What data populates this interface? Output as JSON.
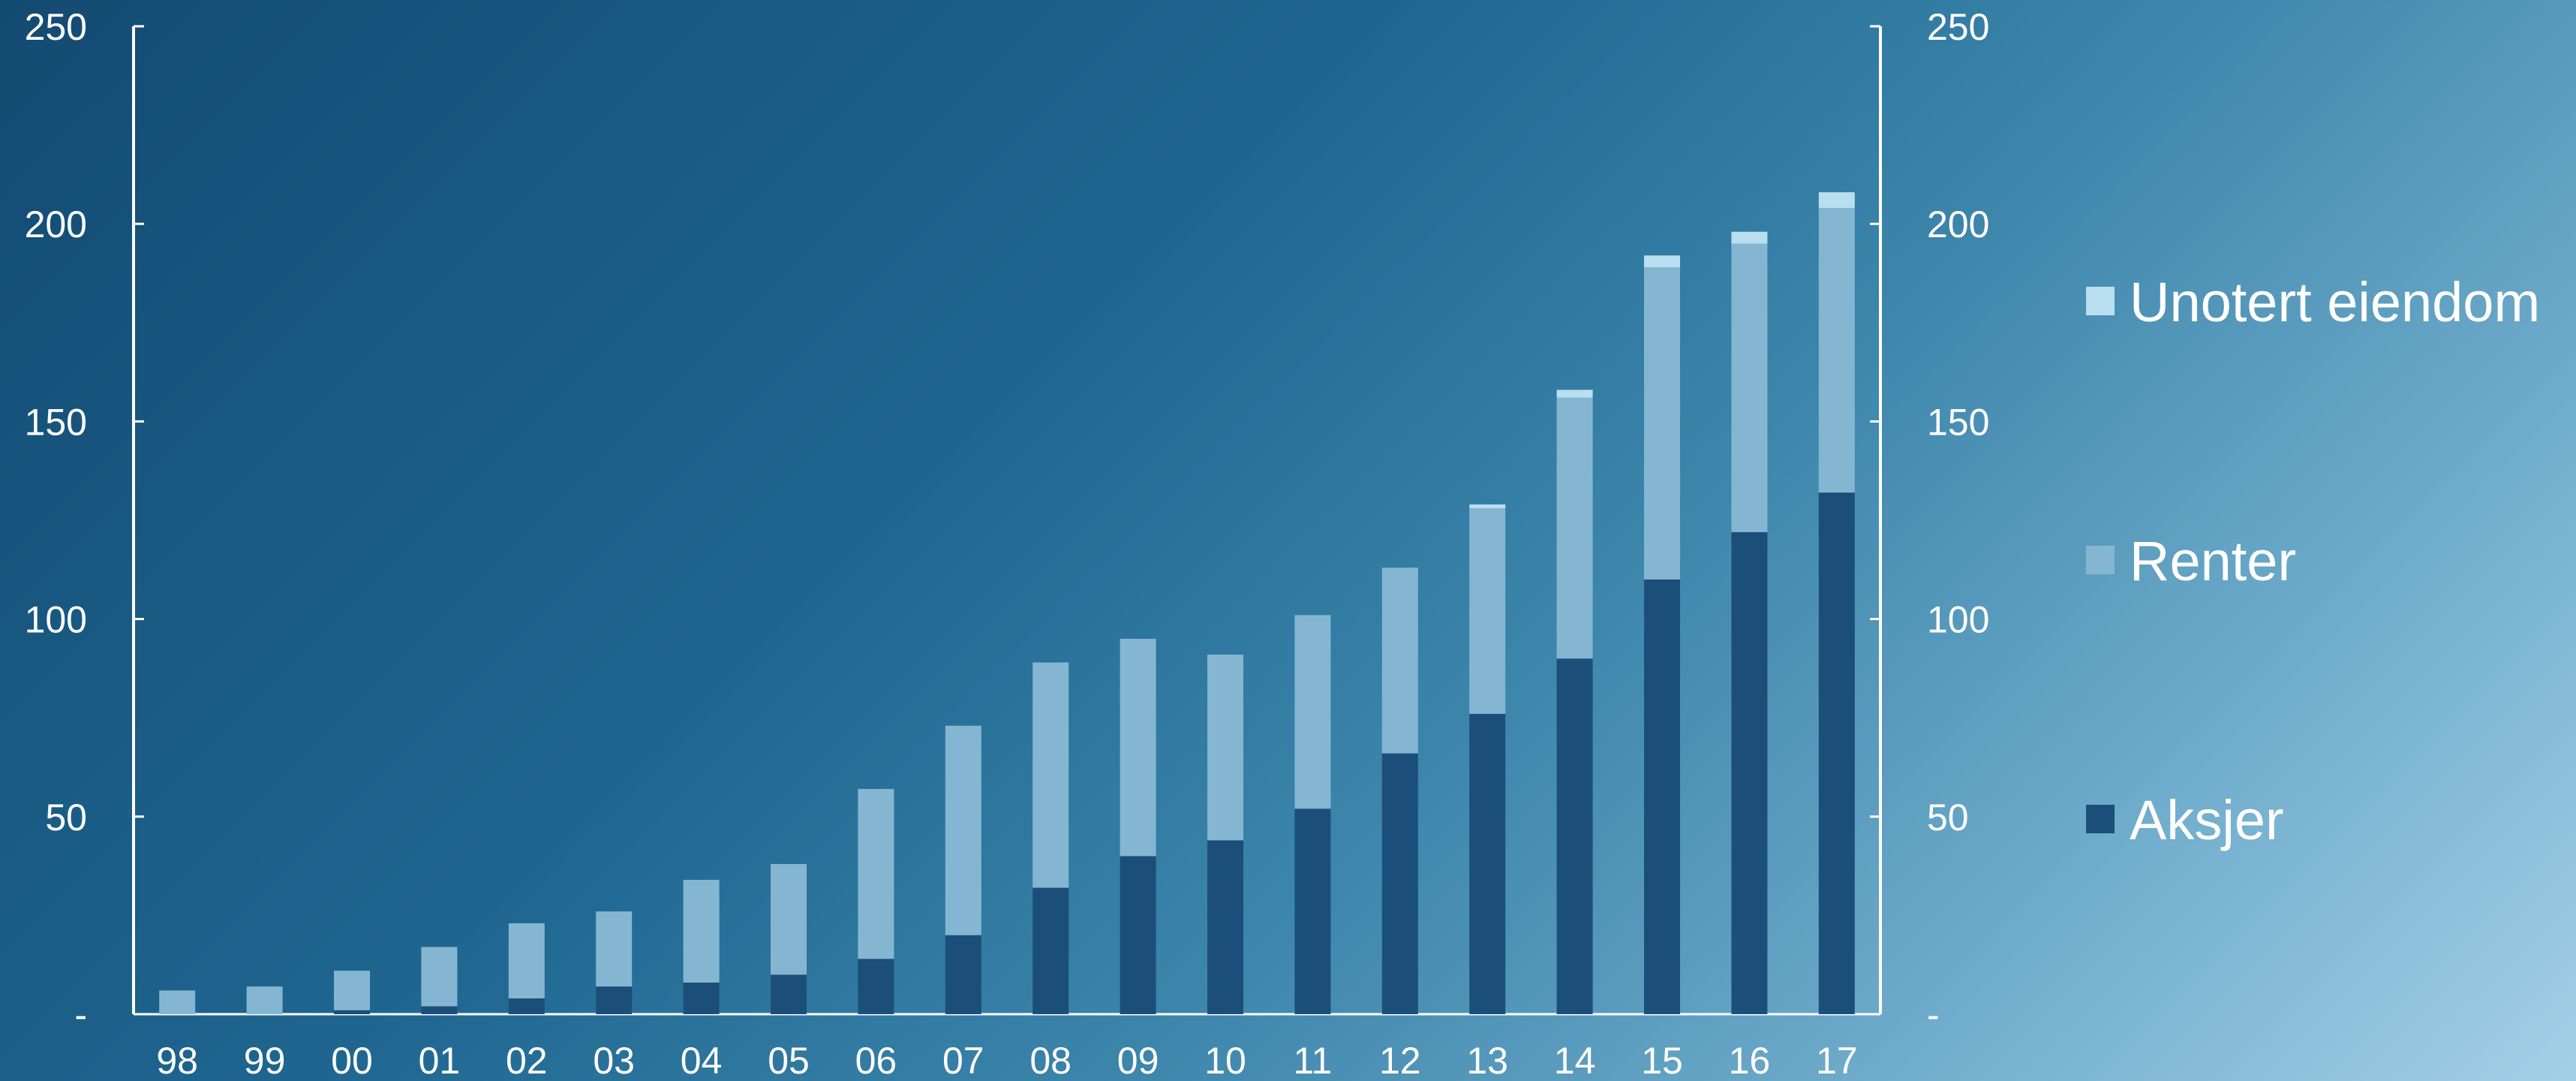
{
  "chart_data": {
    "type": "bar",
    "stacked": true,
    "categories": [
      "98",
      "99",
      "00",
      "01",
      "02",
      "03",
      "04",
      "05",
      "06",
      "07",
      "08",
      "09",
      "10",
      "11",
      "12",
      "13",
      "14",
      "15",
      "16",
      "17"
    ],
    "series": [
      {
        "name": "Aksjer",
        "color": "#1b4f7a",
        "values": [
          0,
          0,
          1,
          2,
          4,
          7,
          8,
          10,
          14,
          20,
          32,
          40,
          44,
          52,
          66,
          76,
          90,
          110,
          122,
          132
        ]
      },
      {
        "name": "Renter",
        "color": "#84b6d2",
        "values": [
          6,
          7,
          10,
          15,
          19,
          19,
          26,
          28,
          43,
          53,
          57,
          55,
          47,
          49,
          47,
          52,
          66,
          79,
          73,
          72
        ]
      },
      {
        "name": "Unotert eiendom",
        "color": "#b9def0",
        "values": [
          0,
          0,
          0,
          0,
          0,
          0,
          0,
          0,
          0,
          0,
          0,
          0,
          0,
          0,
          0,
          1,
          2,
          3,
          3,
          4
        ]
      }
    ],
    "ylim": [
      0,
      250
    ],
    "yticks": [
      0,
      50,
      100,
      150,
      200,
      250
    ],
    "ytick_labels": [
      "-",
      "50",
      "100",
      "150",
      "200",
      "250"
    ],
    "secondary_y_axis": true,
    "legend_position": "right",
    "grid": false,
    "title": "",
    "xlabel": "",
    "ylabel": ""
  }
}
